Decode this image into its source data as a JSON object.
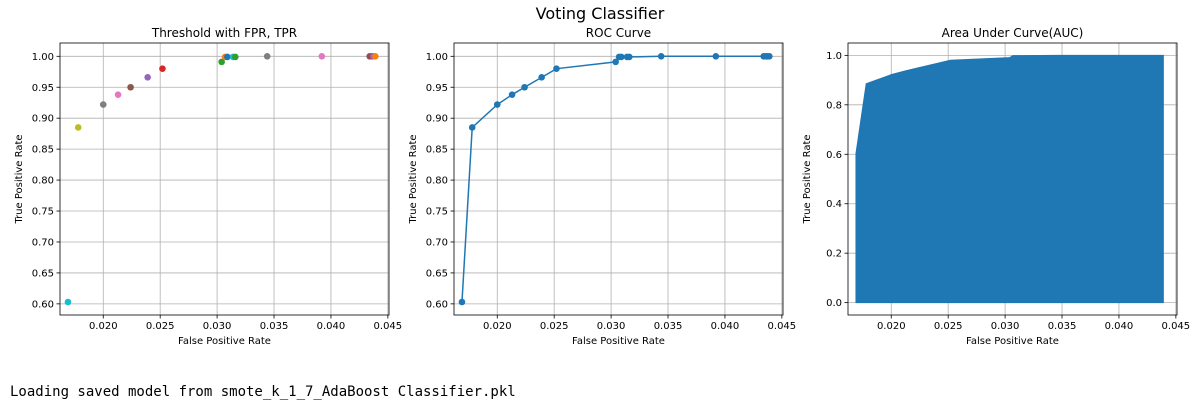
{
  "figure_title": "Voting Classifier",
  "log_line": "Loading saved model from smote_k_1_7_AdaBoost Classifier.pkl",
  "chart_data": [
    {
      "type": "scatter",
      "title": "Threshold with FPR, TPR",
      "xlabel": "False Positive Rate",
      "ylabel": "True Positive Rate",
      "xlim": [
        0.0162,
        0.0451
      ],
      "ylim": [
        0.582,
        1.0215
      ],
      "xticks": [
        "0.020",
        "0.025",
        "0.030",
        "0.035",
        "0.040",
        "0.045"
      ],
      "yticks": [
        "0.60",
        "0.65",
        "0.70",
        "0.75",
        "0.80",
        "0.85",
        "0.90",
        "0.95",
        "1.00"
      ],
      "grid": true,
      "x": [
        0.0169,
        0.0178,
        0.02,
        0.0213,
        0.0224,
        0.0239,
        0.0252,
        0.0304,
        0.0307,
        0.0309,
        0.0314,
        0.0316,
        0.0344,
        0.0392,
        0.0434,
        0.0436,
        0.0437,
        0.0439
      ],
      "y": [
        0.603,
        0.885,
        0.922,
        0.938,
        0.95,
        0.966,
        0.98,
        0.991,
        0.999,
        0.999,
        0.999,
        0.999,
        1.0,
        1.0,
        1.0,
        1.0,
        1.0,
        1.0
      ],
      "point_colors": [
        "#17becf",
        "#bcbd22",
        "#7f7f7f",
        "#e377c2",
        "#8c564b",
        "#9467bd",
        "#d62728",
        "#2ca02c",
        "#ff7f0e",
        "#1f77b4",
        "#17becf",
        "#2ca02c",
        "#7f7f7f",
        "#e377c2",
        "#8c564b",
        "#d62728",
        "#9467bd",
        "#ff7f0e"
      ]
    },
    {
      "type": "line",
      "title": "ROC Curve",
      "xlabel": "False Positive Rate",
      "ylabel": "True Positive Rate",
      "xlim": [
        0.0162,
        0.0451
      ],
      "ylim": [
        0.582,
        1.0215
      ],
      "xticks": [
        "0.020",
        "0.025",
        "0.030",
        "0.035",
        "0.040",
        "0.045"
      ],
      "yticks": [
        "0.60",
        "0.65",
        "0.70",
        "0.75",
        "0.80",
        "0.85",
        "0.90",
        "0.95",
        "1.00"
      ],
      "grid": true,
      "color": "#1f77b4",
      "x": [
        0.0169,
        0.0178,
        0.02,
        0.0213,
        0.0224,
        0.0239,
        0.0252,
        0.0304,
        0.0307,
        0.0309,
        0.0314,
        0.0316,
        0.0344,
        0.0392,
        0.0434,
        0.0436,
        0.0437,
        0.0439
      ],
      "y": [
        0.603,
        0.885,
        0.922,
        0.938,
        0.95,
        0.966,
        0.98,
        0.991,
        0.999,
        0.999,
        0.999,
        0.999,
        1.0,
        1.0,
        1.0,
        1.0,
        1.0,
        1.0
      ]
    },
    {
      "type": "area",
      "title": "Area Under Curve(AUC)",
      "xlabel": "False Positive Rate",
      "ylabel": "True Positive Rate",
      "xlim": [
        0.0162,
        0.0451
      ],
      "ylim": [
        -0.05,
        1.05
      ],
      "xticks": [
        "0.020",
        "0.025",
        "0.030",
        "0.035",
        "0.040",
        "0.045"
      ],
      "yticks": [
        "0.0",
        "0.2",
        "0.4",
        "0.6",
        "0.8",
        "1.0"
      ],
      "grid": true,
      "color": "#1f77b4",
      "x": [
        0.0169,
        0.0178,
        0.02,
        0.0213,
        0.0224,
        0.0239,
        0.0252,
        0.0304,
        0.0307,
        0.0309,
        0.0314,
        0.0316,
        0.0344,
        0.0392,
        0.0434,
        0.0436,
        0.0437,
        0.0439
      ],
      "y": [
        0.603,
        0.885,
        0.922,
        0.938,
        0.95,
        0.966,
        0.98,
        0.991,
        0.999,
        0.999,
        0.999,
        0.999,
        1.0,
        1.0,
        1.0,
        1.0,
        1.0,
        1.0
      ]
    }
  ]
}
